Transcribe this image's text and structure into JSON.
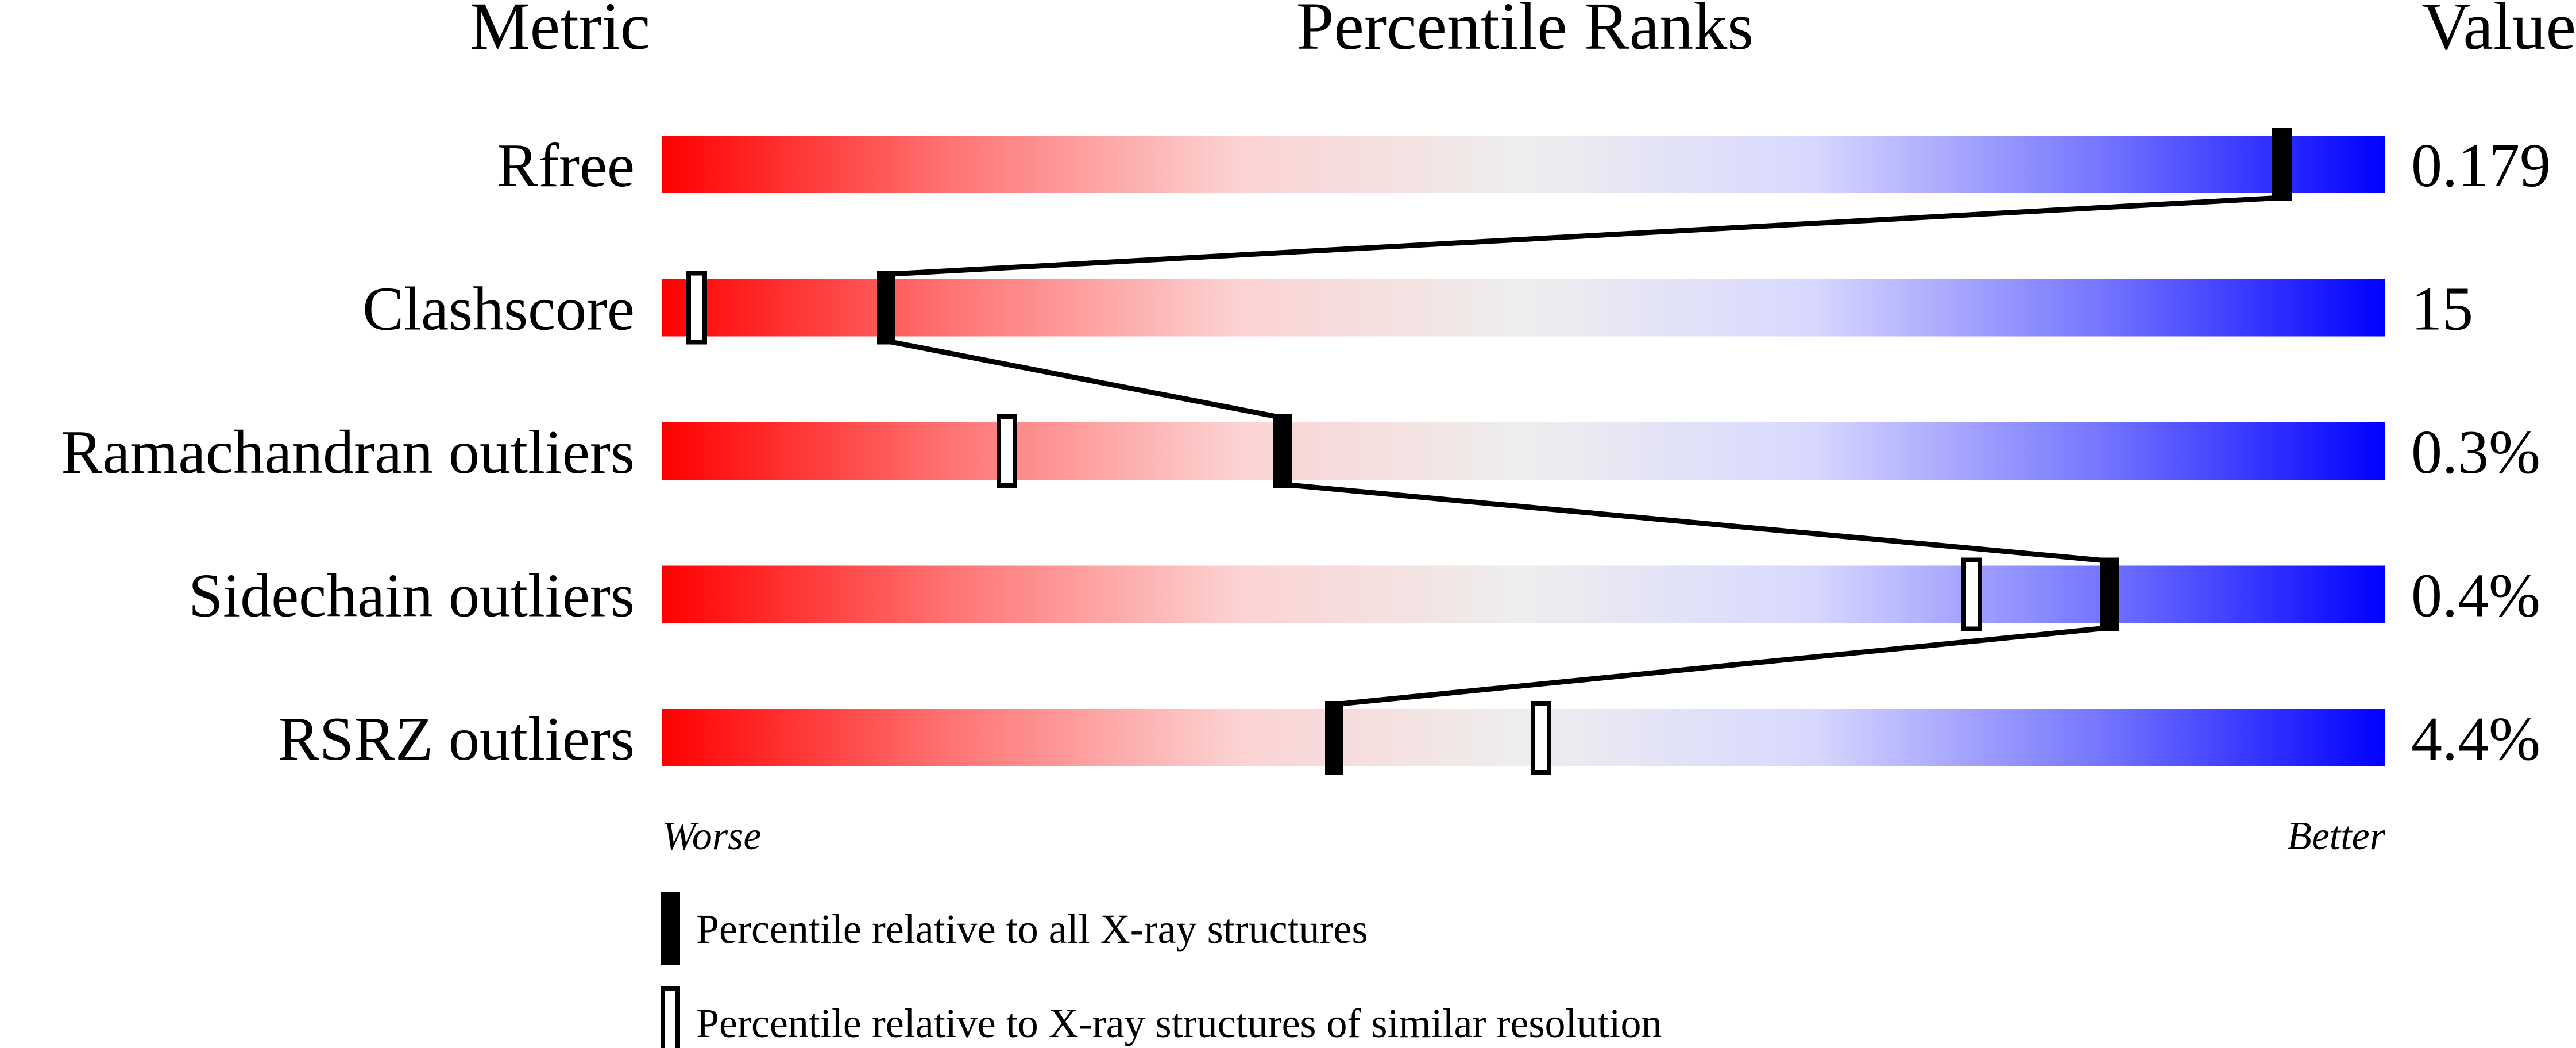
{
  "chart_data": {
    "type": "percentile-ranks",
    "headers": {
      "metric": "Metric",
      "ranks": "Percentile Ranks",
      "value": "Value"
    },
    "xlim": [
      0,
      100
    ],
    "axis_labels": {
      "left": "Worse",
      "right": "Better"
    },
    "gradient_colors": [
      "#ff0000",
      "#ff7373",
      "#fcd2d2",
      "#eeeeee",
      "#d8d8ff",
      "#7676ff",
      "#0000ff"
    ],
    "metrics": [
      {
        "name": "Rfree",
        "value": "0.179",
        "percentile_all": 94,
        "percentile_similar": 94
      },
      {
        "name": "Clashscore",
        "value": "15",
        "percentile_all": 13,
        "percentile_similar": 2
      },
      {
        "name": "Ramachandran outliers",
        "value": "0.3%",
        "percentile_all": 36,
        "percentile_similar": 20
      },
      {
        "name": "Sidechain outliers",
        "value": "0.4%",
        "percentile_all": 84,
        "percentile_similar": 76
      },
      {
        "name": "RSRZ outliers",
        "value": "4.4%",
        "percentile_all": 39,
        "percentile_similar": 51
      }
    ],
    "legend": [
      {
        "marker": "filled",
        "label": "Percentile relative to all X-ray structures"
      },
      {
        "marker": "open",
        "label": "Percentile relative to X-ray structures of similar resolution"
      }
    ]
  }
}
